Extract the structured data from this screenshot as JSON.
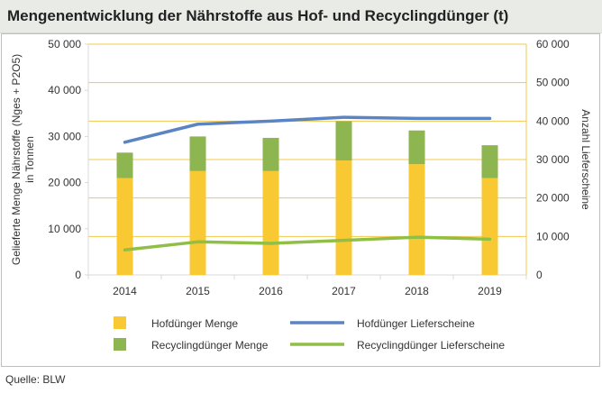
{
  "title": "Mengenentwicklung der Nährstoffe aus Hof- und Recyclingdünger (t)",
  "source": "Quelle: BLW",
  "colors": {
    "hofduenger_menge": "#f9c933",
    "recycling_menge": "#8db550",
    "hofduenger_lieferscheine": "#5b84c4",
    "recycling_lieferscheine": "#8fbf47",
    "grid": "#f0c84a",
    "axis": "#d9d9d9"
  },
  "chart_data": {
    "type": "bar+line",
    "ylabel": "Gelieferte Menge Nährstoffe (Nges + P2O5) in Tonnen",
    "ylabel_lines": [
      "Gelieferte Menge Nährstoffe (Nges + P2O5)",
      "in Tonnen"
    ],
    "y2label": "Anzahl Lieferscheine",
    "ylim": [
      0,
      50000
    ],
    "y2lim": [
      0,
      60000
    ],
    "yticks": [
      "0",
      "10 000",
      "20 000",
      "30 000",
      "40 000",
      "50 000"
    ],
    "y2ticks": [
      "0",
      "10 000",
      "20 000",
      "30 000",
      "40 000",
      "50 000",
      "60 000"
    ],
    "categories": [
      "2014",
      "2015",
      "2016",
      "2017",
      "2018",
      "2019"
    ],
    "bars_stacked": [
      {
        "name": "Hofdünger Menge",
        "values": [
          21000,
          22500,
          22500,
          24800,
          24000,
          21000
        ]
      },
      {
        "name": "Recyclingdünger Menge",
        "values": [
          5500,
          7500,
          7200,
          8500,
          7300,
          7100
        ]
      }
    ],
    "lines_secondary_axis": [
      {
        "name": "Hofdünger Lieferscheine",
        "values": [
          34500,
          39200,
          40000,
          41000,
          40700,
          40700
        ]
      },
      {
        "name": "Recyclingdünger Lieferscheine",
        "values": [
          6500,
          8600,
          8200,
          9000,
          9800,
          9300
        ]
      }
    ],
    "grid": true,
    "legend_position": "bottom"
  }
}
